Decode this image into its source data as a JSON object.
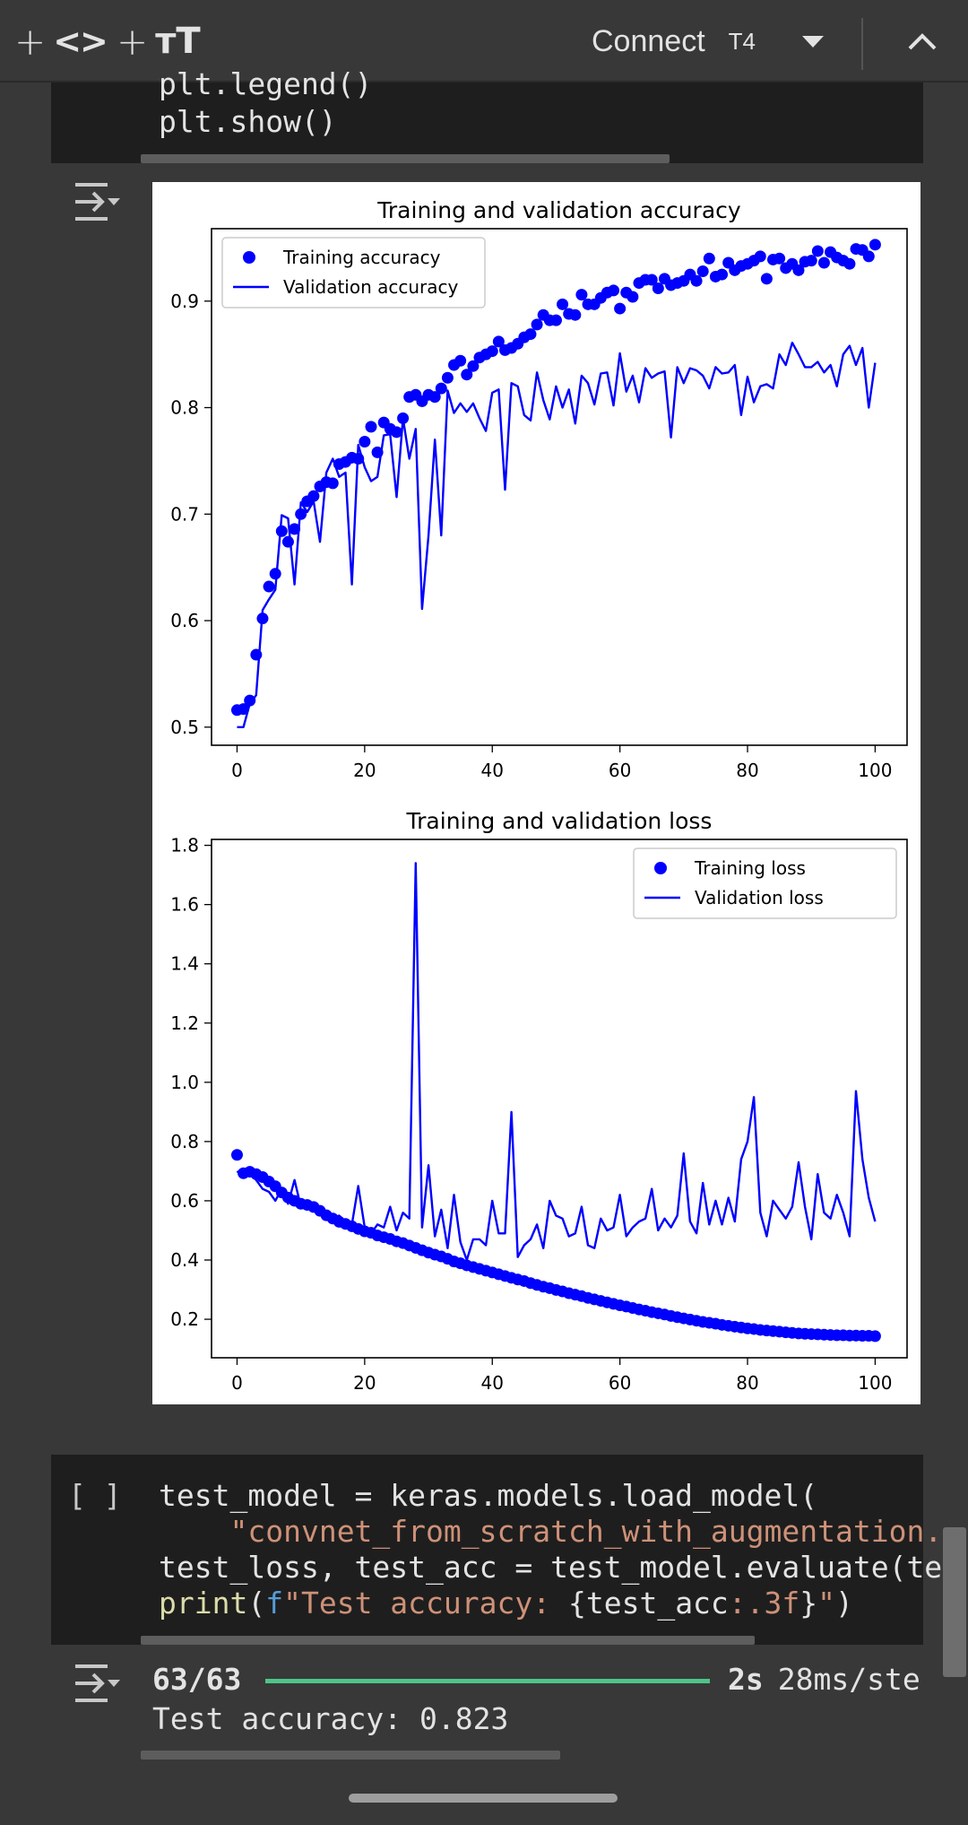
{
  "toolbar": {
    "add_code_plus": "+",
    "code_icon": "<>",
    "add_text_plus": "+",
    "text_icon": "тT",
    "connect_label": "Connect",
    "runtime_label": "T4",
    "icons": [
      "plus-icon",
      "code-icon",
      "text-format-icon",
      "chevron-down-icon",
      "chevron-up-icon"
    ]
  },
  "cell1": {
    "line1": "plt.legend()",
    "line2": "plt.show()"
  },
  "chart_data": [
    {
      "type": "line",
      "title": "Training and validation accuracy",
      "xlabel": "",
      "ylabel": "",
      "xlim": [
        -4,
        105
      ],
      "ylim": [
        0.483,
        0.968
      ],
      "xticks": [
        "0",
        "20",
        "40",
        "60",
        "80",
        "100"
      ],
      "yticks": [
        "0.5",
        "0.6",
        "0.7",
        "0.8",
        "0.9"
      ],
      "legend": "top-left",
      "series": [
        {
          "name": "Training accuracy",
          "style": "dots",
          "color": "#0000ff",
          "values": [
            0.516,
            0.517,
            0.525,
            0.568,
            0.602,
            0.632,
            0.644,
            0.684,
            0.674,
            0.686,
            0.7,
            0.712,
            0.717,
            0.726,
            0.73,
            0.729,
            0.747,
            0.749,
            0.753,
            0.752,
            0.768,
            0.782,
            0.758,
            0.786,
            0.78,
            0.777,
            0.79,
            0.81,
            0.812,
            0.806,
            0.812,
            0.81,
            0.818,
            0.828,
            0.84,
            0.844,
            0.831,
            0.839,
            0.847,
            0.85,
            0.853,
            0.862,
            0.854,
            0.856,
            0.86,
            0.866,
            0.869,
            0.878,
            0.887,
            0.882,
            0.882,
            0.897,
            0.888,
            0.887,
            0.906,
            0.897,
            0.897,
            0.903,
            0.908,
            0.91,
            0.893,
            0.908,
            0.904,
            0.917,
            0.92,
            0.92,
            0.912,
            0.921,
            0.915,
            0.917,
            0.919,
            0.925,
            0.919,
            0.928,
            0.94,
            0.923,
            0.925,
            0.936,
            0.929,
            0.933,
            0.935,
            0.938,
            0.942,
            0.921,
            0.939,
            0.94,
            0.931,
            0.935,
            0.929,
            0.937,
            0.938,
            0.947,
            0.936,
            0.946,
            0.941,
            0.938,
            0.935,
            0.949,
            0.948,
            0.942,
            0.953
          ]
        },
        {
          "name": "Validation accuracy",
          "style": "line",
          "color": "#0000ff",
          "values": [
            0.5,
            0.5,
            0.522,
            0.53,
            0.61,
            0.62,
            0.629,
            0.699,
            0.696,
            0.634,
            0.711,
            0.702,
            0.712,
            0.674,
            0.739,
            0.752,
            0.735,
            0.739,
            0.634,
            0.765,
            0.744,
            0.731,
            0.735,
            0.774,
            0.775,
            0.716,
            0.79,
            0.752,
            0.78,
            0.611,
            0.68,
            0.77,
            0.68,
            0.816,
            0.795,
            0.804,
            0.796,
            0.804,
            0.79,
            0.778,
            0.814,
            0.817,
            0.723,
            0.823,
            0.82,
            0.793,
            0.788,
            0.833,
            0.807,
            0.789,
            0.82,
            0.8,
            0.817,
            0.785,
            0.83,
            0.823,
            0.803,
            0.832,
            0.833,
            0.802,
            0.851,
            0.815,
            0.83,
            0.805,
            0.837,
            0.828,
            0.832,
            0.834,
            0.772,
            0.838,
            0.823,
            0.837,
            0.835,
            0.83,
            0.818,
            0.838,
            0.832,
            0.833,
            0.84,
            0.793,
            0.829,
            0.805,
            0.82,
            0.822,
            0.818,
            0.85,
            0.84,
            0.861,
            0.85,
            0.838,
            0.838,
            0.843,
            0.833,
            0.84,
            0.82,
            0.85,
            0.858,
            0.84,
            0.856,
            0.8,
            0.842
          ]
        }
      ]
    },
    {
      "type": "line",
      "title": "Training and validation loss",
      "xlabel": "",
      "ylabel": "",
      "xlim": [
        -4,
        105
      ],
      "ylim": [
        0.07,
        1.82
      ],
      "xticks": [
        "0",
        "20",
        "40",
        "60",
        "80",
        "100"
      ],
      "yticks": [
        "0.2",
        "0.4",
        "0.6",
        "0.8",
        "1.0",
        "1.2",
        "1.4",
        "1.6",
        "1.8"
      ],
      "legend": "top-right",
      "series": [
        {
          "name": "Training loss",
          "style": "dots",
          "color": "#0000ff",
          "values": [
            0.755,
            0.693,
            0.698,
            0.69,
            0.68,
            0.665,
            0.649,
            0.628,
            0.611,
            0.6,
            0.59,
            0.586,
            0.579,
            0.566,
            0.551,
            0.54,
            0.529,
            0.522,
            0.514,
            0.505,
            0.497,
            0.492,
            0.483,
            0.477,
            0.471,
            0.463,
            0.457,
            0.449,
            0.441,
            0.433,
            0.425,
            0.418,
            0.412,
            0.404,
            0.395,
            0.389,
            0.382,
            0.376,
            0.37,
            0.364,
            0.358,
            0.352,
            0.346,
            0.34,
            0.334,
            0.329,
            0.322,
            0.316,
            0.31,
            0.305,
            0.299,
            0.294,
            0.288,
            0.283,
            0.278,
            0.272,
            0.267,
            0.262,
            0.257,
            0.252,
            0.247,
            0.243,
            0.238,
            0.233,
            0.229,
            0.224,
            0.22,
            0.216,
            0.211,
            0.207,
            0.203,
            0.199,
            0.195,
            0.191,
            0.188,
            0.185,
            0.181,
            0.178,
            0.175,
            0.172,
            0.169,
            0.167,
            0.164,
            0.162,
            0.16,
            0.158,
            0.156,
            0.154,
            0.152,
            0.151,
            0.15,
            0.149,
            0.148,
            0.147,
            0.146,
            0.146,
            0.145,
            0.145,
            0.144,
            0.144,
            0.143
          ]
        },
        {
          "name": "Validation loss",
          "style": "line",
          "color": "#0000ff",
          "values": [
            0.7,
            0.68,
            0.69,
            0.67,
            0.64,
            0.63,
            0.6,
            0.64,
            0.59,
            0.67,
            0.58,
            0.59,
            0.57,
            0.58,
            0.56,
            0.54,
            0.55,
            0.53,
            0.52,
            0.65,
            0.51,
            0.49,
            0.52,
            0.51,
            0.58,
            0.5,
            0.56,
            0.54,
            1.74,
            0.51,
            0.72,
            0.48,
            0.57,
            0.44,
            0.62,
            0.46,
            0.4,
            0.47,
            0.47,
            0.45,
            0.6,
            0.49,
            0.49,
            0.9,
            0.41,
            0.45,
            0.47,
            0.52,
            0.44,
            0.6,
            0.55,
            0.54,
            0.48,
            0.49,
            0.58,
            0.45,
            0.44,
            0.54,
            0.5,
            0.51,
            0.62,
            0.48,
            0.51,
            0.53,
            0.54,
            0.64,
            0.5,
            0.54,
            0.51,
            0.55,
            0.76,
            0.53,
            0.49,
            0.66,
            0.52,
            0.6,
            0.52,
            0.61,
            0.53,
            0.74,
            0.8,
            0.95,
            0.56,
            0.48,
            0.6,
            0.57,
            0.54,
            0.58,
            0.73,
            0.58,
            0.47,
            0.69,
            0.56,
            0.54,
            0.62,
            0.56,
            0.48,
            0.97,
            0.74,
            0.61,
            0.53
          ]
        }
      ]
    }
  ],
  "cell2": {
    "brackets": "[ ]",
    "line1": "test_model = keras.models.load_model(",
    "line2_indent": "    ",
    "line2_string": "\"convnet_from_scratch_with_augmentation.",
    "line3": "test_loss, test_acc = test_model.evaluate(te",
    "line4_print": "print",
    "line4_paren": "(",
    "line4_f": "f",
    "line4_str1": "\"Test accuracy: ",
    "line4_expr": "{test_acc",
    "line4_fmt": ":.3f",
    "line4_brace": "}",
    "line4_str2": "\"",
    "line4_close": ")"
  },
  "output2": {
    "progress_label": "63/63",
    "progress_fraction": 1.0,
    "progress_color": "#4ec48a",
    "time_label": "2s",
    "rate_label": "28ms/ste",
    "result_text": "Test accuracy: 0.823"
  }
}
